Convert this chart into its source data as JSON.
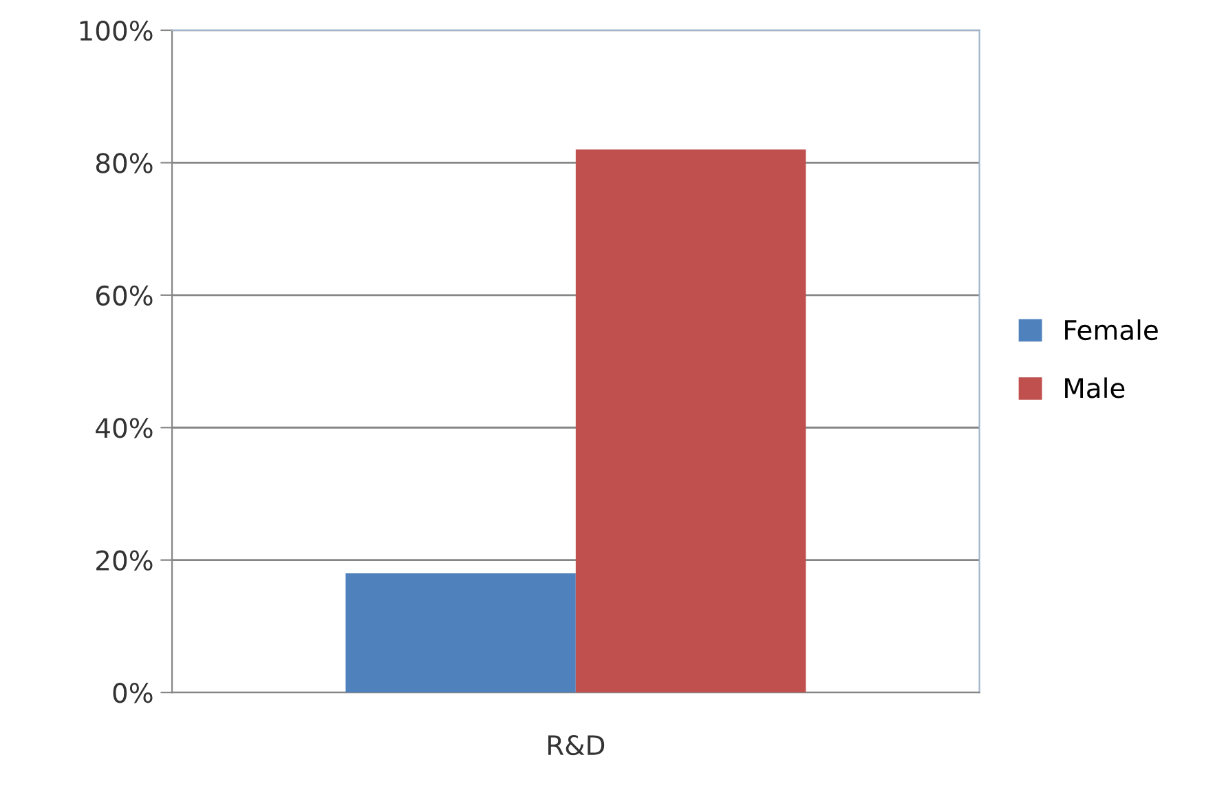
{
  "chart_data": {
    "type": "bar",
    "categories": [
      "R&D"
    ],
    "series": [
      {
        "name": "Female",
        "color": "#4f81bd",
        "values": [
          18
        ]
      },
      {
        "name": "Male",
        "color": "#c0504d",
        "values": [
          82
        ]
      }
    ],
    "ylim": [
      0,
      100
    ],
    "yticks": [
      {
        "value": 0,
        "label": "0%"
      },
      {
        "value": 20,
        "label": "20%"
      },
      {
        "value": 40,
        "label": "40%"
      },
      {
        "value": 60,
        "label": "60%"
      },
      {
        "value": 80,
        "label": "80%"
      },
      {
        "value": 100,
        "label": "100%"
      }
    ],
    "grid": "y",
    "legend": "right"
  }
}
